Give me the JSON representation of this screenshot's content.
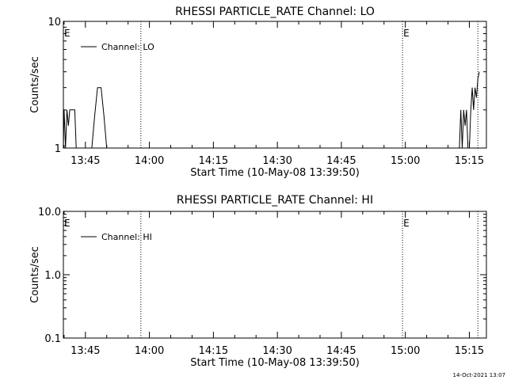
{
  "chart_data": [
    {
      "type": "line",
      "title": "RHESSI PARTICLE_RATE Channel: LO",
      "xlabel": "Start Time (10-May-08 13:39:50)",
      "ylabel": "Counts/sec",
      "yscale": "log",
      "ylim": [
        1,
        10
      ],
      "ytick_labels": [
        {
          "value": 1,
          "label": "1"
        },
        {
          "value": 10,
          "label": "10"
        }
      ],
      "xlim": [
        "13:39:50",
        "15:19:00"
      ],
      "xtick_labels": [
        "13:45",
        "14:00",
        "14:15",
        "14:30",
        "14:45",
        "15:00",
        "15:15"
      ],
      "legend": {
        "position": "top-left",
        "entries": [
          "Channel: LO"
        ]
      },
      "event_lines": [
        {
          "x": "13:58:00",
          "label": "",
          "style": "dotted"
        },
        {
          "x": "14:59:20",
          "label": "E",
          "style": "dotted"
        },
        {
          "x": "15:17:00",
          "label": "",
          "style": "dotted"
        }
      ],
      "edge_marker": "E",
      "series": [
        {
          "name": "Channel: LO",
          "points": [
            [
              "13:39:50",
              1
            ],
            [
              "13:40:00",
              2
            ],
            [
              "13:40:20",
              1
            ],
            [
              "13:40:40",
              2
            ],
            [
              "13:41:00",
              1.5
            ],
            [
              "13:41:20",
              2
            ],
            [
              "13:42:30",
              2
            ],
            [
              "13:42:50",
              1
            ],
            [
              "13:46:30",
              1
            ],
            [
              "13:47:10",
              1.8
            ],
            [
              "13:47:50",
              3
            ],
            [
              "13:48:40",
              3
            ],
            [
              "13:49:20",
              1.8
            ],
            [
              "13:50:00",
              1
            ],
            [
              "15:12:40",
              1
            ],
            [
              "15:13:00",
              2
            ],
            [
              "15:13:20",
              1
            ],
            [
              "15:13:40",
              2
            ],
            [
              "15:14:00",
              1.5
            ],
            [
              "15:14:20",
              2
            ],
            [
              "15:14:40",
              1
            ],
            [
              "15:15:00",
              1
            ],
            [
              "15:15:20",
              2
            ],
            [
              "15:15:40",
              3
            ],
            [
              "15:16:00",
              2
            ],
            [
              "15:16:20",
              3
            ],
            [
              "15:16:40",
              2.5
            ],
            [
              "15:17:00",
              3.5
            ],
            [
              "15:17:20",
              4
            ]
          ]
        }
      ]
    },
    {
      "type": "line",
      "title": "RHESSI PARTICLE_RATE Channel: HI",
      "xlabel": "Start Time (10-May-08 13:39:50)",
      "ylabel": "Counts/sec",
      "yscale": "log",
      "ylim": [
        0.1,
        10
      ],
      "ytick_labels": [
        {
          "value": 0.1,
          "label": "0.1"
        },
        {
          "value": 1,
          "label": "1.0"
        },
        {
          "value": 10,
          "label": "10.0"
        }
      ],
      "xlim": [
        "13:39:50",
        "15:19:00"
      ],
      "xtick_labels": [
        "13:45",
        "14:00",
        "14:15",
        "14:30",
        "14:45",
        "15:00",
        "15:15"
      ],
      "legend": {
        "position": "top-left",
        "entries": [
          "Channel: HI"
        ]
      },
      "event_lines": [
        {
          "x": "13:58:00",
          "label": "",
          "style": "dotted"
        },
        {
          "x": "14:59:20",
          "label": "E",
          "style": "dotted"
        },
        {
          "x": "15:17:00",
          "label": "",
          "style": "dotted"
        }
      ],
      "edge_marker": "E",
      "series": [
        {
          "name": "Channel: HI",
          "points": []
        }
      ]
    }
  ],
  "footer": {
    "timestamp": "14-Oct-2021 13:07"
  }
}
